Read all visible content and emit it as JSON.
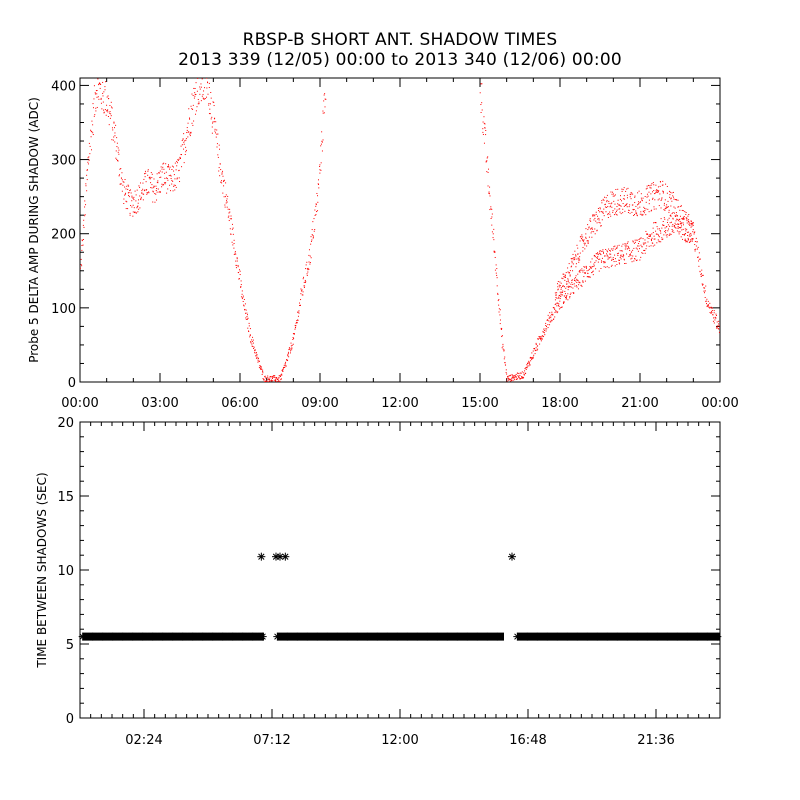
{
  "title_line1": "RBSP-B SHORT ANT. SHADOW TIMES",
  "title_line2": "2013 339 (12/05) 00:00 to 2013 340 (12/06) 00:00",
  "chart_data": [
    {
      "type": "scatter",
      "ylabel": "Probe 5 DELTA AMP DURING SHADOW (ADC)",
      "xlabel": "",
      "xlim_hours": [
        0,
        24
      ],
      "ylim": [
        0,
        410
      ],
      "x_ticks": [
        "00:00",
        "03:00",
        "06:00",
        "09:00",
        "12:00",
        "15:00",
        "18:00",
        "21:00",
        "00:00"
      ],
      "y_ticks": [
        "0",
        "100",
        "200",
        "300",
        "400"
      ],
      "color": "#ff0000",
      "series": [
        {
          "x_hours": [
            0.0,
            0.3,
            0.6,
            1.0,
            1.3,
            1.6,
            1.9,
            2.2,
            2.5,
            2.8,
            3.1,
            3.4,
            3.7,
            4.0,
            4.4,
            4.8,
            5.2,
            5.5,
            5.8,
            6.1,
            6.4,
            6.7,
            6.9,
            7.5,
            7.7,
            8.0,
            8.3,
            8.6,
            8.9,
            9.2,
            15.0,
            15.3,
            15.6,
            15.8,
            16.0,
            16.6,
            17.0,
            17.5,
            18.0,
            18.5,
            19.0,
            19.5,
            20.0,
            20.5,
            21.0,
            21.5,
            22.0,
            22.5,
            23.0,
            23.5,
            24.0
          ],
          "values": [
            150,
            300,
            400,
            380,
            330,
            260,
            240,
            250,
            270,
            260,
            280,
            270,
            285,
            340,
            400,
            400,
            300,
            240,
            180,
            110,
            60,
            25,
            5,
            5,
            25,
            60,
            120,
            170,
            250,
            400,
            400,
            270,
            150,
            60,
            5,
            10,
            40,
            80,
            110,
            130,
            150,
            165,
            170,
            175,
            180,
            200,
            210,
            210,
            200,
            110,
            70
          ]
        },
        {
          "x_hours": [
            17.8,
            18.2,
            18.6,
            19.0,
            19.4,
            19.8,
            20.2,
            20.6,
            21.0,
            21.4,
            21.8,
            22.2,
            22.6,
            23.0
          ],
          "values": [
            120,
            140,
            170,
            200,
            220,
            240,
            245,
            245,
            240,
            250,
            255,
            240,
            220,
            200
          ]
        }
      ]
    },
    {
      "type": "scatter",
      "ylabel": "TIME BETWEEN SHADOWS (SEC)",
      "xlabel": "",
      "xlim_hours": [
        0,
        24
      ],
      "ylim": [
        0,
        20
      ],
      "x_ticks": [
        "02:24",
        "07:12",
        "12:00",
        "16:48",
        "21:36"
      ],
      "y_ticks": [
        "0",
        "5",
        "10",
        "15",
        "20"
      ],
      "color": "#000000",
      "baseline_value": 5.5,
      "baseline_segments_hours": [
        [
          0.1,
          6.9
        ],
        [
          7.4,
          15.9
        ],
        [
          16.4,
          24.0
        ]
      ],
      "outliers": {
        "x_hours": [
          6.8,
          7.35,
          7.5,
          7.7,
          16.2
        ],
        "values": [
          10.9,
          10.9,
          10.9,
          10.9,
          10.9
        ]
      }
    }
  ]
}
